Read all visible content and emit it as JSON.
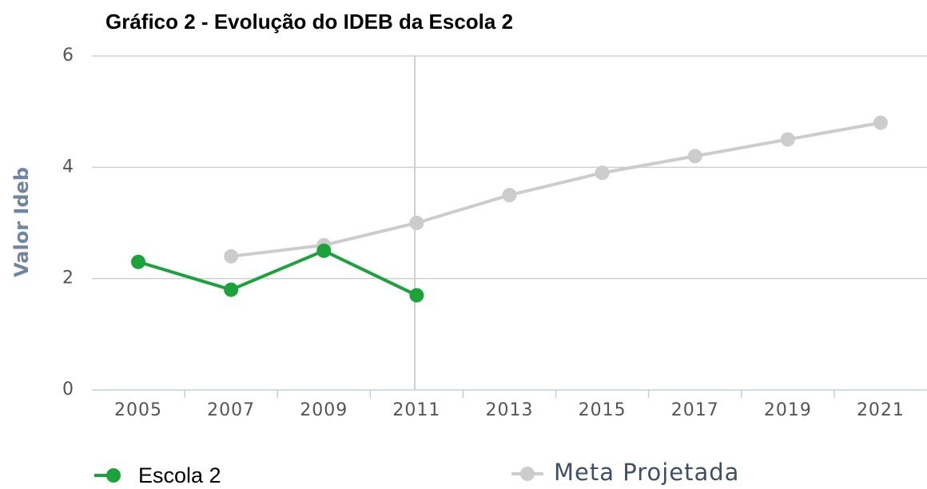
{
  "chart_data": {
    "type": "line",
    "title": "Gráfico 2 - Evolução do IDEB da Escola 2",
    "y_label": "Valor Ideb",
    "categories": [
      "2005",
      "2007",
      "2009",
      "2011",
      "2013",
      "2015",
      "2017",
      "2019",
      "2021"
    ],
    "series": [
      {
        "name": "Escola 2",
        "color": "#1ba23a",
        "values": [
          2.3,
          1.8,
          2.5,
          1.7,
          null,
          null,
          null,
          null,
          null
        ]
      },
      {
        "name": "Meta Projetada",
        "color": "#cccccc",
        "values": [
          null,
          2.4,
          2.6,
          3.0,
          3.5,
          3.9,
          4.2,
          4.5,
          4.8
        ]
      }
    ],
    "ylim": [
      0,
      6
    ],
    "yticks": [
      0,
      2,
      4,
      6
    ],
    "grid": true
  }
}
